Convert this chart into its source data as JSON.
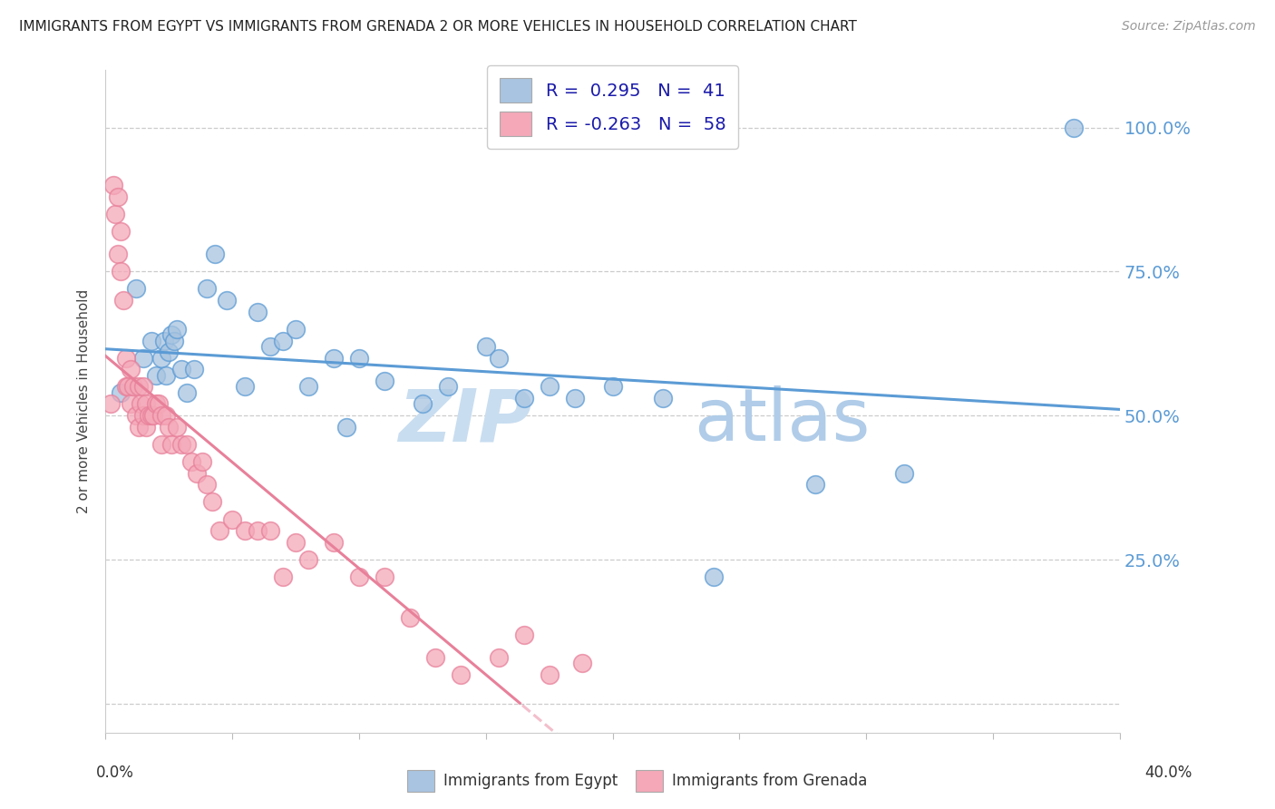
{
  "title": "IMMIGRANTS FROM EGYPT VS IMMIGRANTS FROM GRENADA 2 OR MORE VEHICLES IN HOUSEHOLD CORRELATION CHART",
  "source": "Source: ZipAtlas.com",
  "ylabel": "2 or more Vehicles in Household",
  "yticks": [
    0.0,
    0.25,
    0.5,
    0.75,
    1.0
  ],
  "ytick_labels": [
    "",
    "25.0%",
    "50.0%",
    "75.0%",
    "100.0%"
  ],
  "xlim": [
    0.0,
    0.4
  ],
  "ylim": [
    -0.05,
    1.1
  ],
  "R_egypt": 0.295,
  "N_egypt": 41,
  "R_grenada": -0.263,
  "N_grenada": 58,
  "egypt_color": "#a8c4e0",
  "grenada_color": "#f4a8b8",
  "egypt_line_color": "#5b9bd5",
  "grenada_line_color": "#e8809a",
  "legend_label_egypt": "Immigrants from Egypt",
  "legend_label_grenada": "Immigrants from Grenada",
  "watermark_zip": "ZIP",
  "watermark_atlas": "atlas",
  "egypt_x": [
    0.006,
    0.012,
    0.015,
    0.018,
    0.02,
    0.022,
    0.023,
    0.024,
    0.025,
    0.026,
    0.027,
    0.028,
    0.03,
    0.032,
    0.035,
    0.04,
    0.043,
    0.048,
    0.055,
    0.06,
    0.065,
    0.07,
    0.075,
    0.08,
    0.09,
    0.095,
    0.1,
    0.11,
    0.125,
    0.135,
    0.15,
    0.155,
    0.165,
    0.175,
    0.185,
    0.2,
    0.22,
    0.24,
    0.28,
    0.315,
    0.382
  ],
  "egypt_y": [
    0.54,
    0.72,
    0.6,
    0.63,
    0.57,
    0.6,
    0.63,
    0.57,
    0.61,
    0.64,
    0.63,
    0.65,
    0.58,
    0.54,
    0.58,
    0.72,
    0.78,
    0.7,
    0.55,
    0.68,
    0.62,
    0.63,
    0.65,
    0.55,
    0.6,
    0.48,
    0.6,
    0.56,
    0.52,
    0.55,
    0.62,
    0.6,
    0.53,
    0.55,
    0.53,
    0.55,
    0.53,
    0.22,
    0.38,
    0.4,
    1.0
  ],
  "grenada_x": [
    0.002,
    0.003,
    0.004,
    0.005,
    0.005,
    0.006,
    0.006,
    0.007,
    0.008,
    0.008,
    0.009,
    0.01,
    0.01,
    0.011,
    0.012,
    0.013,
    0.013,
    0.014,
    0.015,
    0.015,
    0.016,
    0.016,
    0.017,
    0.018,
    0.019,
    0.02,
    0.021,
    0.022,
    0.022,
    0.024,
    0.025,
    0.026,
    0.028,
    0.03,
    0.032,
    0.034,
    0.036,
    0.038,
    0.04,
    0.042,
    0.045,
    0.05,
    0.055,
    0.06,
    0.065,
    0.07,
    0.075,
    0.08,
    0.09,
    0.1,
    0.11,
    0.12,
    0.13,
    0.14,
    0.155,
    0.165,
    0.175,
    0.188
  ],
  "grenada_y": [
    0.52,
    0.9,
    0.85,
    0.88,
    0.78,
    0.82,
    0.75,
    0.7,
    0.55,
    0.6,
    0.55,
    0.58,
    0.52,
    0.55,
    0.5,
    0.55,
    0.48,
    0.52,
    0.5,
    0.55,
    0.48,
    0.52,
    0.5,
    0.5,
    0.5,
    0.52,
    0.52,
    0.5,
    0.45,
    0.5,
    0.48,
    0.45,
    0.48,
    0.45,
    0.45,
    0.42,
    0.4,
    0.42,
    0.38,
    0.35,
    0.3,
    0.32,
    0.3,
    0.3,
    0.3,
    0.22,
    0.28,
    0.25,
    0.28,
    0.22,
    0.22,
    0.15,
    0.08,
    0.05,
    0.08,
    0.12,
    0.05,
    0.07
  ]
}
